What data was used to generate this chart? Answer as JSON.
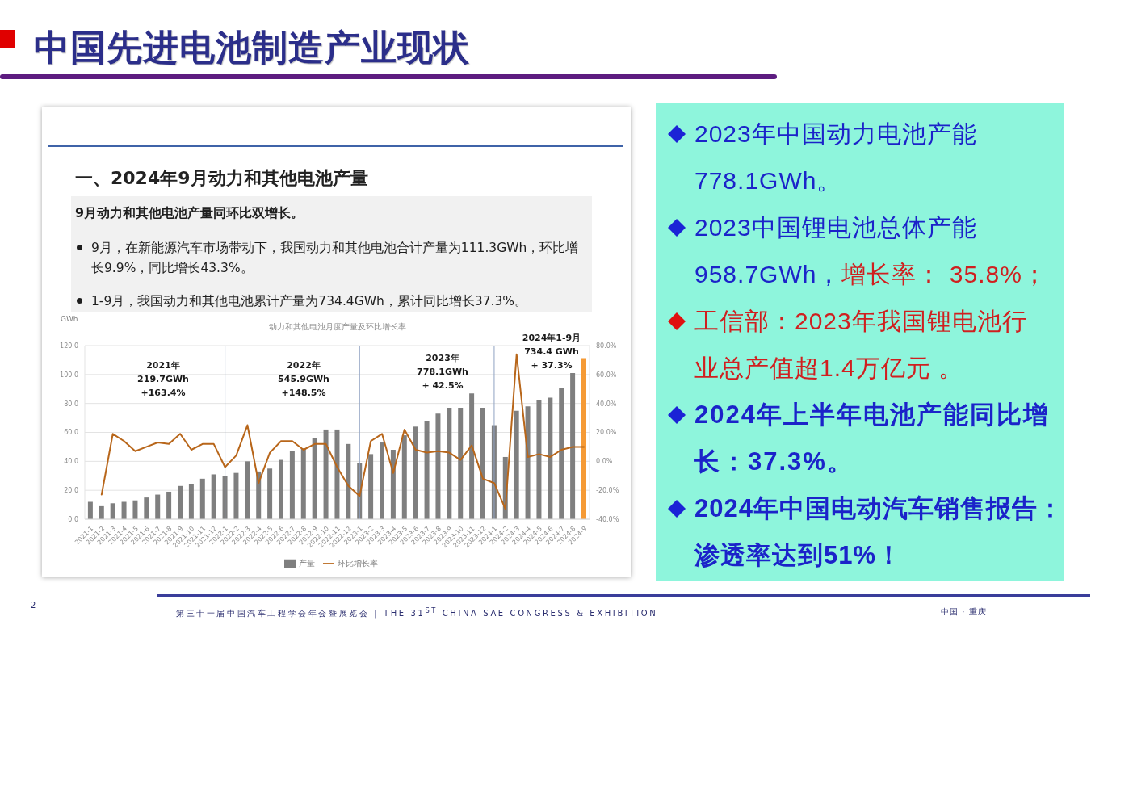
{
  "chart_data": [
    {
      "type": "bar",
      "title": "中国先进电池制造产业现状",
      "subtitle": "一、2024年9月动力和其他电池产量",
      "ylabel": "GWh",
      "categories": [
        "2021-1",
        "2021-2",
        "2021-3",
        "2021-4",
        "2021-5",
        "2021-6",
        "2021-7",
        "2021-8",
        "2021-9",
        "2021-10",
        "2021-11",
        "2021-12",
        "2022-1",
        "2022-2",
        "2022-3",
        "2022-4",
        "2022-5",
        "2022-6",
        "2022-7",
        "2022-8",
        "2022-9",
        "2022-10",
        "2022-11",
        "2022-12",
        "2023-1",
        "2023-2",
        "2023-3",
        "2023-4",
        "2023-5",
        "2023-6",
        "2023-7",
        "2023-8",
        "2023-9",
        "2023-10",
        "2023-11",
        "2023-12",
        "2024-1",
        "2024-2",
        "2024-3",
        "2024-4",
        "2024-5",
        "2024-6",
        "2024-7",
        "2024-8",
        "2024-9"
      ],
      "series": [
        {
          "name": "产量",
          "color": "#7f7f7f",
          "colors": [
            "#7f7f7f",
            "#7f7f7f",
            "#7f7f7f",
            "#7f7f7f",
            "#7f7f7f",
            "#7f7f7f",
            "#7f7f7f",
            "#7f7f7f",
            "#7f7f7f",
            "#7f7f7f",
            "#7f7f7f",
            "#7f7f7f",
            "#7f7f7f",
            "#7f7f7f",
            "#7f7f7f",
            "#7f7f7f",
            "#7f7f7f",
            "#7f7f7f",
            "#7f7f7f",
            "#7f7f7f",
            "#7f7f7f",
            "#7f7f7f",
            "#7f7f7f",
            "#7f7f7f",
            "#7f7f7f",
            "#7f7f7f",
            "#7f7f7f",
            "#7f7f7f",
            "#7f7f7f",
            "#7f7f7f",
            "#7f7f7f",
            "#7f7f7f",
            "#7f7f7f",
            "#7f7f7f",
            "#7f7f7f",
            "#7f7f7f",
            "#7f7f7f",
            "#7f7f7f",
            "#7f7f7f",
            "#7f7f7f",
            "#7f7f7f",
            "#7f7f7f",
            "#7f7f7f",
            "#7f7f7f",
            "#f59a35"
          ],
          "values": [
            12,
            9,
            11,
            12,
            13,
            15,
            17,
            19,
            23,
            24,
            28,
            31,
            30,
            32,
            40,
            33,
            35,
            41,
            47,
            49,
            56,
            62,
            62,
            52,
            39,
            45,
            53,
            48,
            58,
            64,
            68,
            73,
            77,
            77,
            87,
            77,
            65,
            43,
            75,
            78,
            82,
            84,
            91,
            101,
            111.3
          ]
        },
        {
          "name": "环比增长率",
          "type": "line",
          "axis": "y2",
          "color": "#b8661a",
          "values": [
            null,
            -23,
            19,
            14,
            7,
            10,
            13,
            12,
            19,
            8,
            12,
            12,
            -4,
            4,
            25,
            -15,
            6,
            14,
            14,
            8,
            12,
            12,
            -4,
            -17,
            -24,
            14,
            19,
            -8,
            22,
            8,
            6,
            7,
            6,
            1,
            11,
            -12,
            -15,
            -33,
            74,
            3,
            5,
            3,
            8,
            10,
            9.9
          ]
        }
      ],
      "ylim": [
        0,
        120
      ],
      "yticks": [
        {
          "value": 0,
          "label": "0.0"
        },
        {
          "value": 20,
          "label": "20.0"
        },
        {
          "value": 40,
          "label": "40.0"
        },
        {
          "value": 60,
          "label": "60.0"
        },
        {
          "value": 80,
          "label": "80.0"
        },
        {
          "value": 100,
          "label": "100.0"
        },
        {
          "value": 120,
          "label": "120.0"
        }
      ],
      "y2lim": [
        -40,
        80
      ],
      "y2ticks": [
        {
          "value": -40,
          "label": "-40.0%"
        },
        {
          "value": -20,
          "label": "-20.0%"
        },
        {
          "value": 0,
          "label": "0.0%"
        },
        {
          "value": 20,
          "label": "20.0%"
        },
        {
          "value": 40,
          "label": "40.0%"
        },
        {
          "value": 60,
          "label": "60.0%"
        },
        {
          "value": 80,
          "label": "80.0%"
        }
      ],
      "grid": "y",
      "legend": "bottom",
      "marker": "none",
      "ref_lines": [
        {
          "axis": "x",
          "value": "2022-1",
          "color": "#8fa2c2"
        },
        {
          "axis": "x",
          "value": "2023-1",
          "color": "#8fa2c2"
        },
        {
          "axis": "x",
          "value": "2024-1",
          "color": "#8fa2c2"
        }
      ],
      "annotations": [
        "9月动力和其他电池产量同环比双增长。",
        "9月，在新能源汽车市场带动下，我国动力和其他电池合计产量为111.3GWh，环比增长9.9%，同比增长43.3%。",
        "1-9月，我国动力和其他电池累计产量为734.4GWh，累计同比增长37.3%。",
        "动力和其他电池月度产量及环比增长率",
        "2021年\n219.7GWh\n+163.4%",
        "2022年\n545.9GWh\n+148.5%",
        "2023年\n778.1GWh\n+ 42.5%",
        "2024年1-9月\n734.4 GWh\n+ 37.3%",
        "第三十一届中国汽车工程学会年会暨展览会 | THE 31$^{ST}$ CHINA SAE CONGRESS & EXHIBITION",
        "中国 · 重庆",
        "2"
      ]
    },
    {
      "type": "other",
      "annotations": [
        "2023年中国动力电池产能778.1GWh。",
        "2023中国锂电池总体产能",
        "958.7GWh，",
        "增长率： 35.8%；",
        "工信部：2023年我国锂电池行业总产值超1.4万亿元 。",
        "2024年上半年电池产能同比增长：37.3%。",
        "2024年中国电动汽车销售报告：渗透率达到51%！"
      ]
    }
  ]
}
